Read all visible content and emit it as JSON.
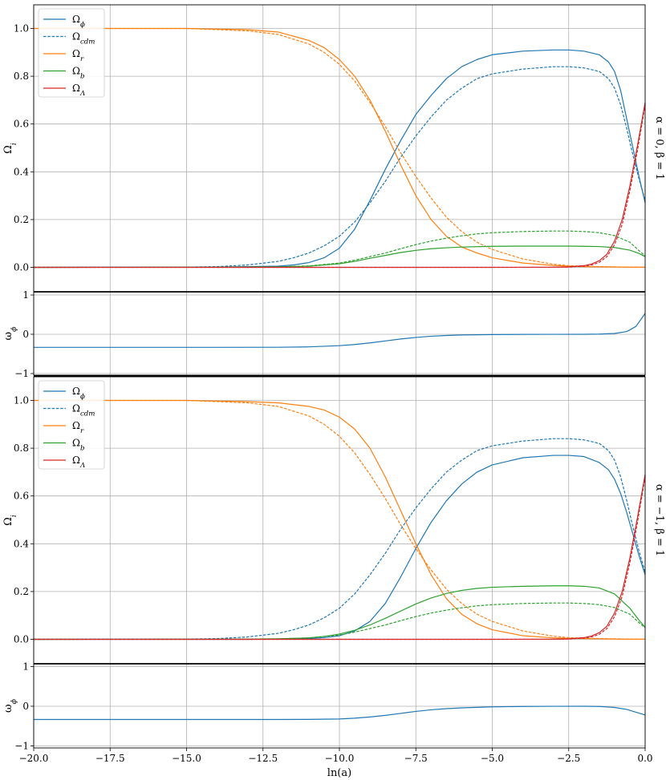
{
  "chart_data": [
    {
      "type": "line",
      "panel": "top",
      "side_label": "α = 0, β = 1",
      "ylabel": "Ω_i",
      "xlim": [
        -20,
        0
      ],
      "ylim": [
        0,
        1.05
      ],
      "yticks": [
        0.0,
        0.2,
        0.4,
        0.6,
        0.8,
        1.0
      ],
      "ytick_labels": [
        "0.0",
        "0.2",
        "0.4",
        "0.6",
        "0.8",
        "1.0"
      ],
      "grid": true,
      "legend_placement": "top-left",
      "legend": [
        "Ω_ϕ",
        "Ω_cdm",
        "Ω_r",
        "Ω_b",
        "Ω_Λ"
      ],
      "series": [
        {
          "name": "Ω_ϕ",
          "color": "#1f77b4",
          "dash": false,
          "x": [
            -20,
            -14,
            -12,
            -11.5,
            -11,
            -10.5,
            -10,
            -9.5,
            -9,
            -8.5,
            -8,
            -7.5,
            -7,
            -6.5,
            -6,
            -5.5,
            -5,
            -4,
            -3,
            -2.5,
            -2,
            -1.5,
            -1.2,
            -1,
            -0.8,
            -0.6,
            -0.4,
            -0.2,
            0
          ],
          "y": [
            0,
            0.001,
            0.005,
            0.01,
            0.02,
            0.04,
            0.08,
            0.16,
            0.28,
            0.41,
            0.53,
            0.64,
            0.72,
            0.79,
            0.84,
            0.87,
            0.89,
            0.905,
            0.91,
            0.91,
            0.905,
            0.89,
            0.86,
            0.82,
            0.74,
            0.62,
            0.5,
            0.38,
            0.27
          ]
        },
        {
          "name": "Ω_cdm",
          "color": "#1f77b4",
          "dash": true,
          "x": [
            -20,
            -15,
            -14,
            -13,
            -12,
            -11.5,
            -11,
            -10.5,
            -10,
            -9.5,
            -9,
            -8.5,
            -8,
            -7.5,
            -7,
            -6.5,
            -6,
            -5.5,
            -5,
            -4,
            -3,
            -2.5,
            -2,
            -1.5,
            -1.2,
            -1,
            -0.8,
            -0.6,
            -0.4,
            -0.2,
            0
          ],
          "y": [
            0,
            0.001,
            0.003,
            0.01,
            0.025,
            0.04,
            0.06,
            0.09,
            0.13,
            0.19,
            0.27,
            0.36,
            0.46,
            0.55,
            0.63,
            0.7,
            0.75,
            0.79,
            0.81,
            0.83,
            0.84,
            0.84,
            0.835,
            0.82,
            0.79,
            0.75,
            0.68,
            0.58,
            0.47,
            0.37,
            0.28
          ]
        },
        {
          "name": "Ω_r",
          "color": "#ff7f0e",
          "dash": false,
          "x": [
            -20,
            -15,
            -13,
            -12,
            -11,
            -10.5,
            -10,
            -9.5,
            -9,
            -8.5,
            -8,
            -7.5,
            -7,
            -6.5,
            -6,
            -5.5,
            -5,
            -4,
            -3,
            -2.5,
            -2,
            -1.5,
            -1,
            -0.5,
            0
          ],
          "y": [
            1.0,
            1.0,
            0.995,
            0.985,
            0.95,
            0.92,
            0.87,
            0.8,
            0.7,
            0.57,
            0.43,
            0.3,
            0.2,
            0.13,
            0.085,
            0.06,
            0.04,
            0.018,
            0.008,
            0.005,
            0.003,
            0.002,
            0.0015,
            0.0008,
            0.0005
          ]
        },
        {
          "name": "Ω_cdm",
          "color": "#ff7f0e",
          "dash": true,
          "x": [
            -20,
            -15,
            -13,
            -12,
            -11,
            -10.5,
            -10,
            -9.5,
            -9,
            -8.5,
            -8,
            -7.5,
            -7,
            -6.5,
            -6,
            -5.5,
            -5,
            -4,
            -3,
            -2.5,
            -2,
            -1.5,
            -1,
            -0.5,
            0
          ],
          "y": [
            1.0,
            1.0,
            0.99,
            0.975,
            0.935,
            0.9,
            0.85,
            0.78,
            0.69,
            0.59,
            0.48,
            0.38,
            0.29,
            0.21,
            0.15,
            0.105,
            0.075,
            0.035,
            0.013,
            0.007,
            0.004,
            0.003,
            0.002,
            0.001,
            0.0005
          ]
        },
        {
          "name": "Ω_b",
          "color": "#2ca02c",
          "dash": false,
          "x": [
            -20,
            -14,
            -12,
            -11,
            -10,
            -9.5,
            -9,
            -8.5,
            -8,
            -7.5,
            -7,
            -6.5,
            -6,
            -5,
            -4,
            -3,
            -2.5,
            -2,
            -1.5,
            -1,
            -0.5,
            -0.2,
            0
          ],
          "y": [
            0,
            0.0005,
            0.002,
            0.005,
            0.015,
            0.025,
            0.038,
            0.05,
            0.062,
            0.071,
            0.078,
            0.082,
            0.085,
            0.088,
            0.089,
            0.089,
            0.089,
            0.088,
            0.087,
            0.083,
            0.072,
            0.058,
            0.045
          ]
        },
        {
          "name": "Ω_b",
          "color": "#2ca02c",
          "dash": true,
          "x": [
            -20,
            -14,
            -12,
            -11,
            -10,
            -9.5,
            -9,
            -8.5,
            -8,
            -7.5,
            -7,
            -6.5,
            -6,
            -5.5,
            -5,
            -4,
            -3,
            -2.5,
            -2,
            -1.5,
            -1,
            -0.5,
            -0.2,
            0
          ],
          "y": [
            0,
            0.0005,
            0.002,
            0.006,
            0.018,
            0.03,
            0.045,
            0.06,
            0.078,
            0.095,
            0.11,
            0.122,
            0.132,
            0.14,
            0.145,
            0.15,
            0.152,
            0.152,
            0.15,
            0.145,
            0.133,
            0.105,
            0.07,
            0.048
          ]
        },
        {
          "name": "Ω_Λ",
          "color": "#d62728",
          "dash": false,
          "x": [
            -20,
            -5,
            -3,
            -2.5,
            -2,
            -1.75,
            -1.5,
            -1.25,
            -1,
            -0.75,
            -0.5,
            -0.25,
            0
          ],
          "y": [
            0,
            0,
            0.0005,
            0.002,
            0.007,
            0.014,
            0.028,
            0.055,
            0.11,
            0.2,
            0.34,
            0.51,
            0.69
          ]
        },
        {
          "name": "Ω_Λ",
          "color": "#d62728",
          "dash": true,
          "x": [
            -20,
            -5,
            -3,
            -2.5,
            -2,
            -1.75,
            -1.5,
            -1.25,
            -1,
            -0.75,
            -0.5,
            -0.25,
            0
          ],
          "y": [
            0,
            0,
            0.0003,
            0.001,
            0.005,
            0.01,
            0.021,
            0.045,
            0.095,
            0.18,
            0.32,
            0.49,
            0.68
          ]
        }
      ]
    },
    {
      "type": "line",
      "panel": "top-eos",
      "ylabel": "ω_ϕ",
      "xlim": [
        -20,
        0
      ],
      "ylim": [
        -1,
        1
      ],
      "yticks": [
        -1,
        0,
        1
      ],
      "ytick_labels": [
        "−1",
        "0",
        "1"
      ],
      "grid": true,
      "series": [
        {
          "name": "ω_ϕ",
          "color": "#1f77b4",
          "dash": false,
          "x": [
            -20,
            -15,
            -12,
            -11,
            -10,
            -9.5,
            -9,
            -8.5,
            -8,
            -7.5,
            -7,
            -6.5,
            -6,
            -5,
            -4,
            -3,
            -2,
            -1.5,
            -1,
            -0.6,
            -0.3,
            0
          ],
          "y": [
            -0.333,
            -0.333,
            -0.33,
            -0.32,
            -0.29,
            -0.26,
            -0.22,
            -0.17,
            -0.12,
            -0.08,
            -0.05,
            -0.03,
            -0.018,
            -0.008,
            -0.003,
            -0.001,
            0.0,
            0.005,
            0.02,
            0.07,
            0.2,
            0.53
          ]
        }
      ]
    },
    {
      "type": "line",
      "panel": "bottom",
      "side_label": "α = −1, β = 1",
      "ylabel": "Ω_i",
      "xlim": [
        -20,
        0
      ],
      "ylim": [
        0,
        1.05
      ],
      "yticks": [
        0.0,
        0.2,
        0.4,
        0.6,
        0.8,
        1.0
      ],
      "ytick_labels": [
        "0.0",
        "0.2",
        "0.4",
        "0.6",
        "0.8",
        "1.0"
      ],
      "grid": true,
      "legend_placement": "top-left",
      "legend": [
        "Ω_ϕ",
        "Ω_cdm",
        "Ω_r",
        "Ω_b",
        "Ω_Λ"
      ],
      "series": [
        {
          "name": "Ω_ϕ",
          "color": "#1f77b4",
          "dash": false,
          "x": [
            -20,
            -13,
            -12,
            -11,
            -10.5,
            -10,
            -9.5,
            -9,
            -8.5,
            -8,
            -7.5,
            -7,
            -6.5,
            -6,
            -5.5,
            -5,
            -4,
            -3,
            -2.5,
            -2,
            -1.5,
            -1.2,
            -1,
            -0.8,
            -0.6,
            -0.4,
            -0.2,
            0
          ],
          "y": [
            0,
            0,
            0.001,
            0.003,
            0.007,
            0.015,
            0.035,
            0.075,
            0.15,
            0.26,
            0.38,
            0.49,
            0.58,
            0.65,
            0.7,
            0.73,
            0.76,
            0.77,
            0.77,
            0.765,
            0.74,
            0.71,
            0.67,
            0.61,
            0.53,
            0.44,
            0.35,
            0.27
          ]
        },
        {
          "name": "Ω_cdm",
          "color": "#1f77b4",
          "dash": true,
          "x": [
            -20,
            -15,
            -14,
            -13,
            -12,
            -11.5,
            -11,
            -10.5,
            -10,
            -9.5,
            -9,
            -8.5,
            -8,
            -7.5,
            -7,
            -6.5,
            -6,
            -5.5,
            -5,
            -4,
            -3,
            -2.5,
            -2,
            -1.5,
            -1.2,
            -1,
            -0.8,
            -0.6,
            -0.4,
            -0.2,
            0
          ],
          "y": [
            0,
            0.001,
            0.003,
            0.01,
            0.025,
            0.04,
            0.06,
            0.09,
            0.13,
            0.19,
            0.27,
            0.36,
            0.46,
            0.55,
            0.63,
            0.7,
            0.75,
            0.79,
            0.81,
            0.83,
            0.84,
            0.84,
            0.835,
            0.82,
            0.79,
            0.75,
            0.68,
            0.58,
            0.47,
            0.37,
            0.28
          ]
        },
        {
          "name": "Ω_r",
          "color": "#ff7f0e",
          "dash": false,
          "x": [
            -20,
            -15,
            -13,
            -12,
            -11,
            -10.5,
            -10,
            -9.5,
            -9,
            -8.5,
            -8,
            -7.5,
            -7,
            -6.5,
            -6,
            -5.5,
            -5,
            -4,
            -3,
            -2.5,
            -2,
            -1.5,
            -1,
            -0.5,
            0
          ],
          "y": [
            1.0,
            1.0,
            0.995,
            0.99,
            0.975,
            0.96,
            0.93,
            0.88,
            0.8,
            0.68,
            0.54,
            0.4,
            0.27,
            0.17,
            0.105,
            0.065,
            0.04,
            0.015,
            0.006,
            0.004,
            0.003,
            0.002,
            0.001,
            0.0005,
            0.0003
          ]
        },
        {
          "name": "Ω_r",
          "color": "#ff7f0e",
          "dash": true,
          "x": [
            -20,
            -15,
            -13,
            -12,
            -11,
            -10.5,
            -10,
            -9.5,
            -9,
            -8.5,
            -8,
            -7.5,
            -7,
            -6.5,
            -6,
            -5.5,
            -5,
            -4,
            -3,
            -2.5,
            -2,
            -1.5,
            -1,
            -0.5,
            0
          ],
          "y": [
            1.0,
            1.0,
            0.99,
            0.975,
            0.935,
            0.9,
            0.85,
            0.78,
            0.69,
            0.59,
            0.48,
            0.38,
            0.29,
            0.21,
            0.15,
            0.105,
            0.075,
            0.035,
            0.013,
            0.007,
            0.004,
            0.003,
            0.002,
            0.001,
            0.0005
          ]
        },
        {
          "name": "Ω_b",
          "color": "#2ca02c",
          "dash": false,
          "x": [
            -20,
            -13,
            -12,
            -11,
            -10.5,
            -10,
            -9.5,
            -9,
            -8.5,
            -8,
            -7.5,
            -7,
            -6.5,
            -6,
            -5.5,
            -5,
            -4,
            -3,
            -2.5,
            -2,
            -1.5,
            -1,
            -0.5,
            -0.2,
            0
          ],
          "y": [
            0,
            0.0005,
            0.002,
            0.006,
            0.012,
            0.022,
            0.038,
            0.06,
            0.088,
            0.118,
            0.148,
            0.173,
            0.192,
            0.205,
            0.213,
            0.218,
            0.222,
            0.224,
            0.224,
            0.222,
            0.215,
            0.19,
            0.13,
            0.08,
            0.05
          ]
        },
        {
          "name": "Ω_b",
          "color": "#2ca02c",
          "dash": true,
          "x": [
            -20,
            -14,
            -12,
            -11,
            -10,
            -9.5,
            -9,
            -8.5,
            -8,
            -7.5,
            -7,
            -6.5,
            -6,
            -5.5,
            -5,
            -4,
            -3,
            -2.5,
            -2,
            -1.5,
            -1,
            -0.5,
            -0.2,
            0
          ],
          "y": [
            0,
            0.0005,
            0.002,
            0.006,
            0.018,
            0.03,
            0.045,
            0.06,
            0.078,
            0.095,
            0.11,
            0.122,
            0.132,
            0.14,
            0.145,
            0.15,
            0.152,
            0.152,
            0.15,
            0.145,
            0.133,
            0.105,
            0.07,
            0.048
          ]
        },
        {
          "name": "Ω_Λ",
          "color": "#d62728",
          "dash": false,
          "x": [
            -20,
            -5,
            -3,
            -2.5,
            -2,
            -1.75,
            -1.5,
            -1.25,
            -1,
            -0.75,
            -0.5,
            -0.25,
            0
          ],
          "y": [
            0,
            0,
            0.0005,
            0.002,
            0.007,
            0.014,
            0.028,
            0.055,
            0.11,
            0.2,
            0.34,
            0.51,
            0.69
          ]
        },
        {
          "name": "Ω_Λ",
          "color": "#d62728",
          "dash": true,
          "x": [
            -20,
            -5,
            -3,
            -2.5,
            -2,
            -1.75,
            -1.5,
            -1.25,
            -1,
            -0.75,
            -0.5,
            -0.25,
            0
          ],
          "y": [
            0,
            0,
            0.0003,
            0.001,
            0.005,
            0.01,
            0.021,
            0.045,
            0.095,
            0.18,
            0.32,
            0.49,
            0.68
          ]
        }
      ]
    },
    {
      "type": "line",
      "panel": "bottom-eos",
      "ylabel": "ω_ϕ",
      "xlabel": "ln(a)",
      "xlim": [
        -20,
        0
      ],
      "ylim": [
        -1,
        1
      ],
      "xticks": [
        -20,
        -17.5,
        -15,
        -12.5,
        -10,
        -7.5,
        -5,
        -2.5,
        0
      ],
      "xtick_labels": [
        "−20.0",
        "−17.5",
        "−15.0",
        "−12.5",
        "−10.0",
        "−7.5",
        "−5.0",
        "−2.5",
        "0.0"
      ],
      "yticks": [
        -1,
        0,
        1
      ],
      "ytick_labels": [
        "−1",
        "0",
        "1"
      ],
      "grid": true,
      "series": [
        {
          "name": "ω_ϕ",
          "color": "#1f77b4",
          "dash": false,
          "x": [
            -20,
            -15,
            -12,
            -11,
            -10,
            -9.5,
            -9,
            -8.5,
            -8,
            -7.5,
            -7,
            -6.5,
            -6,
            -5,
            -4,
            -3,
            -2,
            -1.5,
            -1,
            -0.6,
            -0.3,
            0
          ],
          "y": [
            -0.333,
            -0.333,
            -0.333,
            -0.33,
            -0.32,
            -0.3,
            -0.27,
            -0.23,
            -0.18,
            -0.13,
            -0.09,
            -0.06,
            -0.04,
            -0.015,
            -0.005,
            -0.001,
            0.0,
            -0.005,
            -0.03,
            -0.08,
            -0.15,
            -0.22
          ]
        }
      ]
    }
  ]
}
